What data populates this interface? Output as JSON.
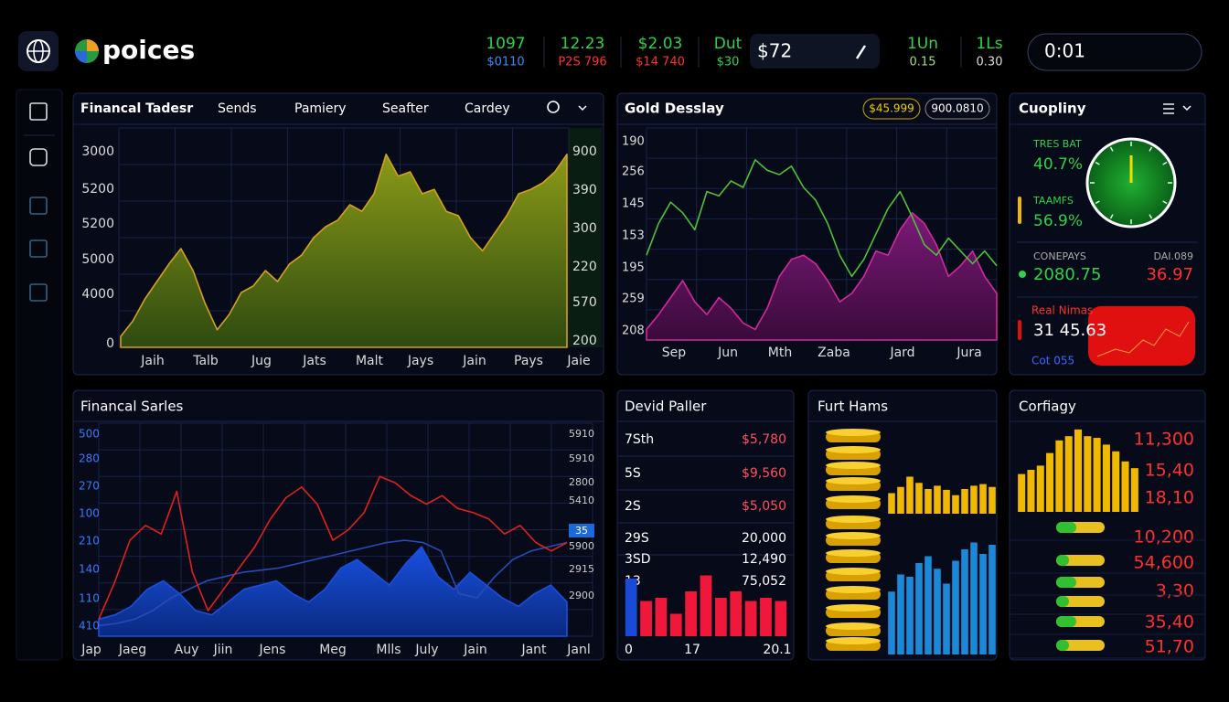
{
  "header": {
    "brand": "poices",
    "tickers": [
      {
        "value": "1097",
        "sub": "$0110",
        "value_color": "#2fd24a",
        "sub_color": "#3a8cff"
      },
      {
        "value": "12.23",
        "sub": "P2S 796",
        "value_color": "#2fd24a",
        "sub_color": "#ff3030"
      },
      {
        "value": "$2.03",
        "sub": "$14 740",
        "value_color": "#2fd24a",
        "sub_color": "#ff3030"
      },
      {
        "value": "Dut",
        "sub": "$30",
        "value_color": "#2fd24a",
        "sub_color": "#2fd24a"
      },
      {
        "value": "1Un",
        "sub": "0.15",
        "value_color": "#2fd24a",
        "sub_color": "#9be07a"
      },
      {
        "value": "1Ls",
        "sub": "0.30",
        "value_color": "#2fd24a",
        "sub_color": "#dddddd"
      }
    ],
    "price_box": "$72",
    "time_box": "0:01"
  },
  "trading_panel": {
    "tabs": [
      "Financal Tadesr",
      "Sends",
      "Pamiery",
      "Seafter",
      "Cardey"
    ],
    "left_labels": [
      "3000",
      "5200",
      "5200",
      "5000",
      "4000",
      "0"
    ],
    "right_labels": [
      "900",
      "390",
      "300",
      "220",
      "570",
      "200"
    ],
    "x_labels": [
      "Jaih",
      "Talb",
      "Jug",
      "Jats",
      "Malt",
      "Jays",
      "Jain",
      "Pays",
      "Jaie"
    ],
    "ylim": [
      0,
      100
    ],
    "color": "#d4a020",
    "values": [
      5,
      12,
      22,
      30,
      38,
      45,
      35,
      20,
      8,
      15,
      25,
      28,
      35,
      30,
      38,
      42,
      50,
      55,
      58,
      65,
      62,
      70,
      88,
      78,
      80,
      70,
      72,
      62,
      60,
      50,
      44,
      52,
      60,
      70,
      72,
      75,
      80,
      88
    ]
  },
  "gold_panel": {
    "title": "Gold Desslay",
    "badges": [
      "$45.999",
      "900.0810"
    ],
    "y_labels": [
      "190",
      "256",
      "145",
      "153",
      "195",
      "259",
      "208"
    ],
    "x_labels": [
      "Sep",
      "Jun",
      "Mth",
      "Zaba",
      "Jard",
      "Jura"
    ],
    "ylim": [
      0,
      100
    ],
    "series": [
      {
        "color": "#4fc03a",
        "values": [
          40,
          55,
          65,
          60,
          52,
          70,
          68,
          75,
          72,
          85,
          80,
          78,
          82,
          72,
          66,
          55,
          40,
          30,
          38,
          50,
          62,
          70,
          58,
          45,
          40,
          48,
          42,
          36,
          42,
          35
        ]
      },
      {
        "color": "#d02a9a",
        "values": [
          5,
          12,
          20,
          28,
          18,
          12,
          20,
          15,
          8,
          5,
          15,
          30,
          38,
          40,
          36,
          28,
          18,
          22,
          30,
          42,
          40,
          52,
          60,
          55,
          45,
          30,
          35,
          42,
          30,
          22
        ]
      }
    ]
  },
  "company_panel": {
    "title": "Cuopliny",
    "metrics": [
      {
        "label": "TRES BAT",
        "value": "40.7%"
      },
      {
        "label": "TAAMFS",
        "value": "56.9%"
      }
    ],
    "compare": {
      "left_label": "CONEPAYS",
      "right_label": "DAI.089",
      "left_value": "2080.75",
      "right_value": "36.97"
    },
    "real": {
      "label": "Real Nimas",
      "value": "31 45.63",
      "note": "Cot 055"
    }
  },
  "series_panel": {
    "title": "Financal Sarles",
    "left_labels": [
      "500",
      "280",
      "270",
      "100",
      "210",
      "140",
      "110",
      "410"
    ],
    "right_labels": [
      "5910",
      "5910",
      "2800",
      "5410",
      "5900",
      "2915",
      "2900"
    ],
    "x_labels": [
      "Jap",
      "Jaeg",
      "Auy",
      "Jiin",
      "Jens",
      "Meg",
      "Mlls",
      "July",
      "Jain",
      "Jant",
      "Janl"
    ],
    "tag": "35",
    "ylim": [
      0,
      100
    ],
    "series": [
      {
        "color": "#e02020",
        "values": [
          8,
          25,
          45,
          52,
          48,
          68,
          30,
          12,
          22,
          32,
          42,
          55,
          65,
          70,
          62,
          45,
          50,
          58,
          75,
          72,
          66,
          62,
          66,
          60,
          58,
          55,
          48,
          52,
          44,
          40,
          44
        ]
      },
      {
        "color": "#2a4ab8",
        "values": [
          5,
          6,
          8,
          12,
          18,
          22,
          26,
          28,
          30,
          31,
          32,
          34,
          36,
          38,
          40,
          42,
          44,
          45,
          44,
          40,
          20,
          18,
          28,
          36,
          40,
          42,
          44
        ]
      },
      {
        "color": "#1a50d8",
        "values": [
          8,
          10,
          14,
          22,
          26,
          20,
          12,
          10,
          16,
          22,
          24,
          26,
          20,
          16,
          22,
          32,
          36,
          30,
          24,
          34,
          42,
          28,
          22,
          30,
          24,
          18,
          14,
          20,
          24,
          16
        ]
      }
    ]
  },
  "list_panel": {
    "title": "Devid Paller",
    "rows": [
      [
        "7Sth",
        "$5,780"
      ],
      [
        "5S",
        "$9,560"
      ],
      [
        "2S",
        "$5,050"
      ],
      [
        "29S",
        "20,000"
      ],
      [
        "3SD",
        "12,490"
      ],
      [
        "13",
        "75,052"
      ]
    ],
    "bottom_labels": [
      "0",
      "17",
      "20.1"
    ],
    "ylim": [
      0,
      100
    ],
    "color": "#f0183a",
    "first_color": "#1a4ad8",
    "values": [
      90,
      55,
      60,
      35,
      70,
      95,
      60,
      70,
      55,
      60,
      55
    ]
  },
  "stack_panel": {
    "title": "Furt Hams",
    "ylim": [
      0,
      100
    ],
    "series": [
      {
        "color": "#f0b800",
        "values": [
          50,
          65,
          90,
          75,
          60,
          68,
          58,
          45,
          60,
          68,
          72,
          65
        ]
      },
      {
        "color": "#1a8ad8",
        "values": [
          55,
          70,
          68,
          80,
          86,
          75,
          62,
          82,
          92,
          98,
          88,
          96
        ]
      }
    ]
  },
  "config_panel": {
    "title": "Corfiagy",
    "ylim": [
      0,
      100
    ],
    "color": "#f0b800",
    "values": [
      45,
      50,
      55,
      70,
      85,
      90,
      98,
      90,
      88,
      80,
      72,
      60,
      52
    ],
    "numbers": [
      "11,300",
      "15,40",
      "18,10",
      "10,200",
      "54,600",
      "3,30",
      "35,40",
      "51,70"
    ]
  }
}
